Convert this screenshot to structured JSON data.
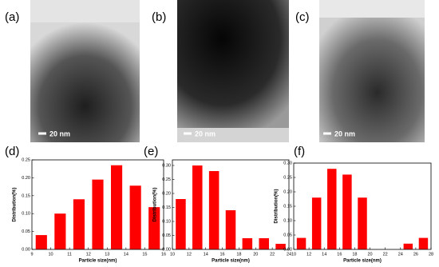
{
  "images": [
    {
      "label": "(a)",
      "scale_bar": "20 nm"
    },
    {
      "label": "(b)",
      "scale_bar": "20 nm"
    },
    {
      "label": "(c)",
      "scale_bar": "20 nm"
    }
  ],
  "chart_data": [
    {
      "type": "bar",
      "panel_label": "(d)",
      "x_label": "Particle size(nm)",
      "y_label": "Distribution(%)",
      "color": "#ff0000",
      "x": [
        9.5,
        10.5,
        11.5,
        12.5,
        13.5,
        14.5,
        15.5
      ],
      "values": [
        0.04,
        0.1,
        0.14,
        0.195,
        0.235,
        0.178,
        0.118
      ],
      "xlim": [
        9,
        16
      ],
      "xticks": [
        9,
        10,
        11,
        12,
        13,
        14,
        15,
        16
      ],
      "ylim": [
        0,
        0.25
      ],
      "yticks": [
        {
          "value": 0,
          "label": "0.00"
        },
        {
          "value": 0.05,
          "label": "0.05"
        },
        {
          "value": 0.1,
          "label": "0.10"
        },
        {
          "value": 0.15,
          "label": "0.15"
        },
        {
          "value": 0.2,
          "label": "0.20"
        },
        {
          "value": 0.25,
          "label": "0.25"
        }
      ]
    },
    {
      "type": "bar",
      "panel_label": "(e)",
      "x_label": "Particle size(nm)",
      "y_label": "Distribution(%)",
      "color": "#ff0000",
      "x": [
        11,
        13,
        15,
        17,
        19,
        21,
        23
      ],
      "values": [
        0.18,
        0.3,
        0.28,
        0.14,
        0.04,
        0.04,
        0.02
      ],
      "xlim": [
        10,
        24
      ],
      "xticks": [
        10,
        12,
        14,
        16,
        18,
        20,
        22,
        24
      ],
      "ylim": [
        0,
        0.32
      ],
      "yticks": [
        {
          "value": 0,
          "label": "0.00"
        },
        {
          "value": 0.05,
          "label": "0.05"
        },
        {
          "value": 0.1,
          "label": "0.10"
        },
        {
          "value": 0.15,
          "label": "0.15"
        },
        {
          "value": 0.2,
          "label": "0.20"
        },
        {
          "value": 0.25,
          "label": "0.25"
        },
        {
          "value": 0.3,
          "label": "0.30"
        }
      ]
    },
    {
      "type": "bar",
      "panel_label": "(f)",
      "x_label": "Particle size(nm)",
      "y_label": "Distribution(%)",
      "color": "#ff0000",
      "x": [
        11,
        13,
        15,
        17,
        19,
        25,
        27
      ],
      "values": [
        0.04,
        0.18,
        0.28,
        0.26,
        0.18,
        0.02,
        0.04
      ],
      "xlim": [
        10,
        28
      ],
      "xticks": [
        10,
        12,
        14,
        16,
        18,
        20,
        22,
        24,
        26,
        28
      ],
      "ylim": [
        0,
        0.3
      ],
      "yticks": [
        {
          "value": 0,
          "label": "0.00"
        },
        {
          "value": 0.05,
          "label": "0.05"
        },
        {
          "value": 0.1,
          "label": "0.10"
        },
        {
          "value": 0.15,
          "label": "0.15"
        },
        {
          "value": 0.2,
          "label": "0.20"
        },
        {
          "value": 0.25,
          "label": "0.25"
        },
        {
          "value": 0.3,
          "label": "0.30"
        }
      ]
    }
  ]
}
